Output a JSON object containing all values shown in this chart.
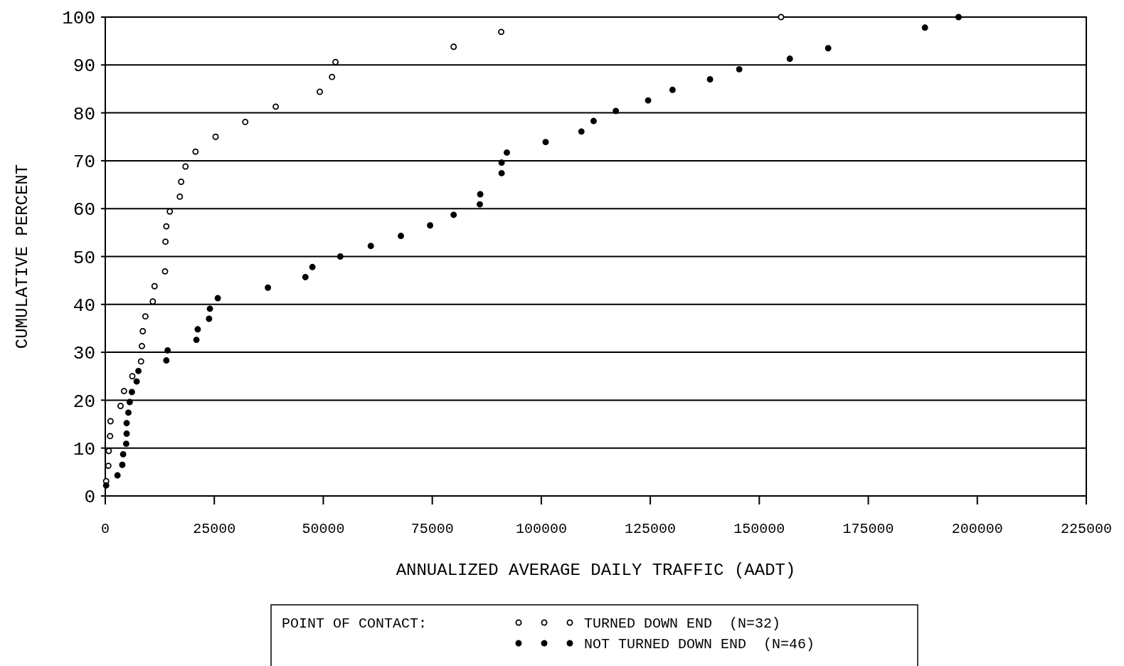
{
  "chart_data": {
    "type": "scatter",
    "xlabel": "ANNUALIZED AVERAGE DAILY TRAFFIC (AADT)",
    "ylabel": "CUMULATIVE PERCENT",
    "legend_title": "POINT OF CONTACT:",
    "xlim": [
      0,
      225000
    ],
    "xticks": [
      0,
      25000,
      50000,
      75000,
      100000,
      125000,
      150000,
      175000,
      200000,
      225000
    ],
    "ylim": [
      0,
      100
    ],
    "yticks": [
      0,
      10,
      20,
      30,
      40,
      50,
      60,
      70,
      80,
      90,
      100
    ],
    "grid": "y",
    "legend": "bottom",
    "marker": "circle",
    "series": [
      {
        "name": "TURNED DOWN END  (N=32)",
        "color": "#000000",
        "x": [
          200,
          700,
          800,
          1100,
          1200,
          3500,
          4300,
          6200,
          8200,
          8400,
          8600,
          9200,
          10900,
          11300,
          13700,
          13800,
          14000,
          14800,
          17100,
          17400,
          18400,
          20700,
          25300,
          32100,
          39100,
          49200,
          52000,
          52800,
          79900,
          90800,
          155000
        ],
        "values": [
          3.1,
          6.3,
          9.4,
          12.5,
          15.6,
          18.8,
          21.9,
          25,
          28.1,
          31.3,
          34.4,
          37.5,
          40.6,
          43.8,
          46.9,
          53.1,
          56.3,
          59.4,
          62.5,
          65.6,
          68.8,
          71.9,
          75,
          78.1,
          81.3,
          84.4,
          87.5,
          90.6,
          93.8,
          96.9,
          100
        ]
      },
      {
        "name": "NOT TURNED DOWN END  (N=46)",
        "color": "#000000",
        "x": [
          200,
          2800,
          3900,
          4100,
          4800,
          4900,
          4900,
          5300,
          5600,
          6100,
          7200,
          7600,
          14000,
          14300,
          20900,
          21200,
          23800,
          24000,
          25800,
          37300,
          45900,
          47500,
          53900,
          60900,
          67800,
          74500,
          79900,
          85900,
          86000,
          90900,
          90900,
          92100,
          101000,
          109200,
          112000,
          117100,
          124500,
          130100,
          138700,
          145400,
          157000,
          165800,
          188000,
          195700
        ],
        "values": [
          2.2,
          4.3,
          6.5,
          8.7,
          10.9,
          13,
          15.2,
          17.4,
          19.6,
          21.7,
          23.9,
          26.1,
          28.3,
          30.4,
          32.6,
          34.8,
          37,
          39.1,
          41.3,
          43.5,
          45.7,
          47.8,
          50,
          52.2,
          54.3,
          56.5,
          58.7,
          60.9,
          63,
          67.4,
          69.6,
          71.7,
          73.9,
          76.1,
          78.3,
          80.4,
          82.6,
          84.8,
          87,
          89.1,
          91.3,
          93.5,
          97.8,
          100
        ]
      }
    ]
  }
}
